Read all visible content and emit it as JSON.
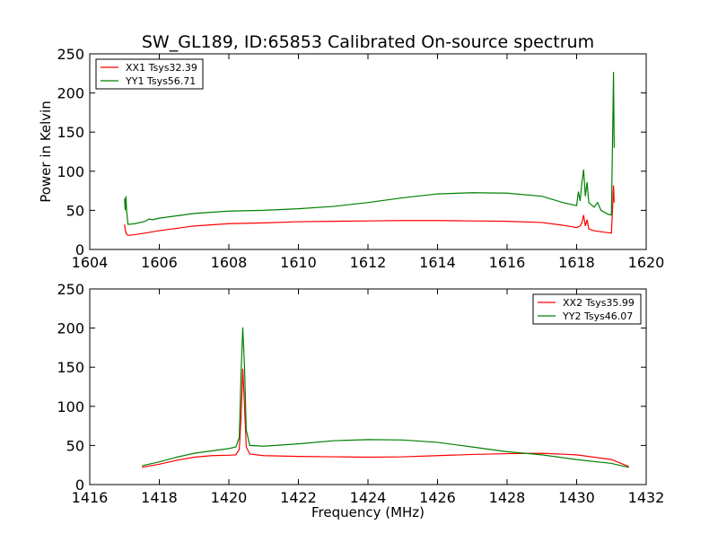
{
  "chart_data": [
    {
      "type": "line",
      "title": "SW_GL189, ID:65853 Calibrated On-source spectrum",
      "xlabel": "",
      "ylabel": "Power in Kelvin",
      "xlim": [
        1604,
        1620
      ],
      "ylim": [
        0,
        250
      ],
      "xticks": [
        1604,
        1606,
        1608,
        1610,
        1612,
        1614,
        1616,
        1618,
        1620
      ],
      "yticks": [
        0,
        50,
        100,
        150,
        200,
        250
      ],
      "grid": false,
      "legend_position": "top-left",
      "series": [
        {
          "name": "XX1 Tsys32.39",
          "color": "#ff0000",
          "points": [
            [
              1605.0,
              32
            ],
            [
              1605.02,
              26
            ],
            [
              1605.05,
              20
            ],
            [
              1605.1,
              18
            ],
            [
              1605.3,
              19
            ],
            [
              1605.6,
              21
            ],
            [
              1606.0,
              24
            ],
            [
              1607.0,
              30
            ],
            [
              1608.0,
              33
            ],
            [
              1609.0,
              34
            ],
            [
              1610.0,
              35.5
            ],
            [
              1611.0,
              36
            ],
            [
              1612.0,
              36.5
            ],
            [
              1613.0,
              37
            ],
            [
              1614.0,
              37
            ],
            [
              1615.0,
              36.5
            ],
            [
              1616.0,
              36
            ],
            [
              1617.0,
              34.5
            ],
            [
              1617.6,
              31
            ],
            [
              1618.0,
              28
            ],
            [
              1618.1,
              30
            ],
            [
              1618.15,
              34
            ],
            [
              1618.2,
              44
            ],
            [
              1618.25,
              30
            ],
            [
              1618.3,
              38
            ],
            [
              1618.35,
              26
            ],
            [
              1618.5,
              24
            ],
            [
              1618.8,
              22
            ],
            [
              1619.0,
              21
            ],
            [
              1619.04,
              60
            ],
            [
              1619.06,
              82
            ],
            [
              1619.08,
              60
            ]
          ]
        },
        {
          "name": "YY1 Tsys56.71",
          "color": "#008000",
          "points": [
            [
              1605.0,
              65
            ],
            [
              1605.02,
              50
            ],
            [
              1605.04,
              68
            ],
            [
              1605.06,
              50
            ],
            [
              1605.1,
              32
            ],
            [
              1605.3,
              33
            ],
            [
              1605.6,
              36
            ],
            [
              1605.7,
              39
            ],
            [
              1605.8,
              38
            ],
            [
              1606.0,
              40
            ],
            [
              1606.5,
              43
            ],
            [
              1607.0,
              46
            ],
            [
              1608.0,
              49
            ],
            [
              1609.0,
              50
            ],
            [
              1610.0,
              52
            ],
            [
              1611.0,
              55
            ],
            [
              1612.0,
              60
            ],
            [
              1613.0,
              66
            ],
            [
              1614.0,
              71
            ],
            [
              1615.0,
              72.5
            ],
            [
              1616.0,
              72
            ],
            [
              1617.0,
              68
            ],
            [
              1617.6,
              60
            ],
            [
              1618.0,
              56
            ],
            [
              1618.05,
              74
            ],
            [
              1618.1,
              62
            ],
            [
              1618.15,
              85
            ],
            [
              1618.2,
              102
            ],
            [
              1618.25,
              68
            ],
            [
              1618.3,
              86
            ],
            [
              1618.35,
              60
            ],
            [
              1618.5,
              54
            ],
            [
              1618.6,
              60
            ],
            [
              1618.7,
              50
            ],
            [
              1618.9,
              45
            ],
            [
              1619.0,
              44
            ],
            [
              1619.04,
              160
            ],
            [
              1619.06,
              227
            ],
            [
              1619.08,
              130
            ]
          ]
        }
      ]
    },
    {
      "type": "line",
      "title": "",
      "xlabel": "Frequency (MHz)",
      "ylabel": "",
      "xlim": [
        1416,
        1432
      ],
      "ylim": [
        0,
        250
      ],
      "xticks": [
        1416,
        1418,
        1420,
        1422,
        1424,
        1426,
        1428,
        1430,
        1432
      ],
      "yticks": [
        0,
        50,
        100,
        150,
        200,
        250
      ],
      "grid": false,
      "legend_position": "top-right",
      "series": [
        {
          "name": "XX2 Tsys35.99",
          "color": "#ff0000",
          "points": [
            [
              1417.5,
              22
            ],
            [
              1418.0,
              26
            ],
            [
              1418.5,
              31
            ],
            [
              1419.0,
              35
            ],
            [
              1419.5,
              37
            ],
            [
              1420.0,
              37.5
            ],
            [
              1420.2,
              38
            ],
            [
              1420.3,
              45
            ],
            [
              1420.35,
              85
            ],
            [
              1420.4,
              148
            ],
            [
              1420.45,
              100
            ],
            [
              1420.5,
              48
            ],
            [
              1420.6,
              39
            ],
            [
              1421.0,
              37
            ],
            [
              1422.0,
              36
            ],
            [
              1423.0,
              35.5
            ],
            [
              1424.0,
              35
            ],
            [
              1425.0,
              35.5
            ],
            [
              1426.0,
              37
            ],
            [
              1427.0,
              38.5
            ],
            [
              1428.0,
              39.5
            ],
            [
              1429.0,
              40
            ],
            [
              1430.0,
              38
            ],
            [
              1431.0,
              32
            ],
            [
              1431.5,
              23
            ]
          ]
        },
        {
          "name": "YY2 Tsys46.07",
          "color": "#008000",
          "points": [
            [
              1417.5,
              24
            ],
            [
              1418.0,
              29
            ],
            [
              1418.5,
              35
            ],
            [
              1419.0,
              40
            ],
            [
              1419.5,
              43
            ],
            [
              1420.0,
              46
            ],
            [
              1420.2,
              48
            ],
            [
              1420.3,
              60
            ],
            [
              1420.35,
              140
            ],
            [
              1420.4,
              201
            ],
            [
              1420.45,
              150
            ],
            [
              1420.5,
              70
            ],
            [
              1420.6,
              50
            ],
            [
              1421.0,
              49
            ],
            [
              1422.0,
              52
            ],
            [
              1423.0,
              56
            ],
            [
              1424.0,
              57.5
            ],
            [
              1425.0,
              57
            ],
            [
              1426.0,
              54
            ],
            [
              1427.0,
              48
            ],
            [
              1428.0,
              42
            ],
            [
              1429.0,
              38
            ],
            [
              1430.0,
              32
            ],
            [
              1431.0,
              27
            ],
            [
              1431.5,
              22
            ]
          ]
        }
      ]
    }
  ],
  "colors": {
    "axes_edge": "#000000",
    "background": "#ffffff"
  }
}
